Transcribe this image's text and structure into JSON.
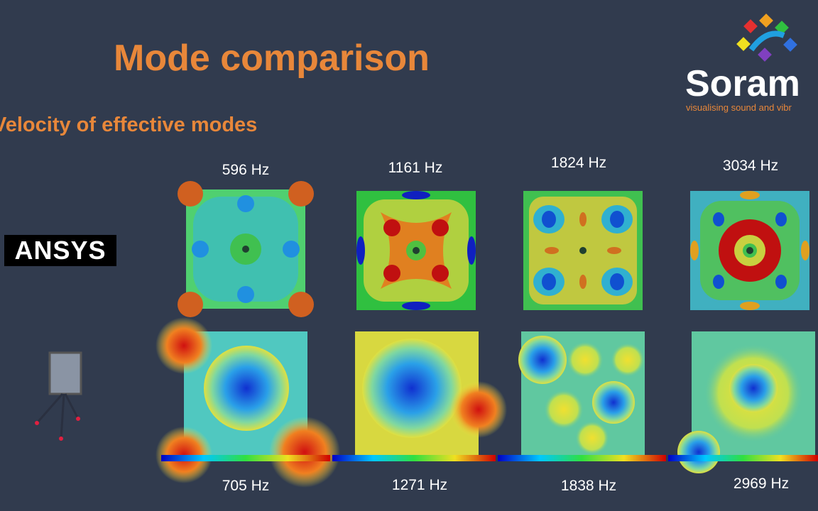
{
  "header": {
    "title": "Mode comparison",
    "subtitle": "Velocity of effective modes"
  },
  "logo": {
    "name": "Soram",
    "tagline": "visualising sound and vibr"
  },
  "simulation": {
    "label": "ANSYS",
    "frequencies": [
      "596 Hz",
      "1161 Hz",
      "1824 Hz",
      "3034 Hz"
    ]
  },
  "measurement": {
    "frequencies": [
      "705 Hz",
      "1271 Hz",
      "1838 Hz",
      "2969 Hz"
    ]
  }
}
